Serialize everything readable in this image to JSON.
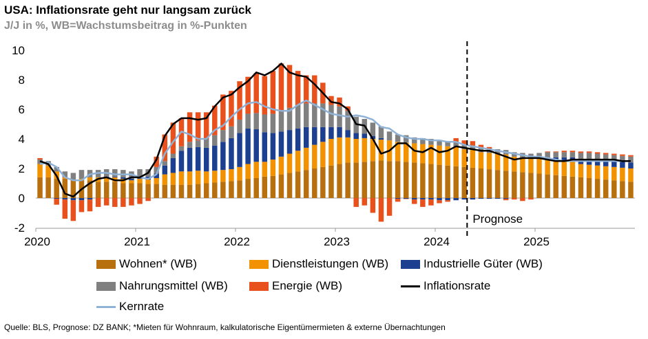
{
  "title": "USA: Inflationsrate geht nur langsam zurück",
  "subtitle": "J/J in %, WB=Wachstumsbeitrag in %-Punkten",
  "source": "Quelle: BLS, Prognose: DZ BANK; *Mieten für Wohnraum, kalkulatorische Eigentümermieten & externe Übernachtungen",
  "prognose_label": "Prognose",
  "legend": {
    "wohnen": "Wohnen* (WB)",
    "dienst": "Dienstleistungen (WB)",
    "guter": "Industrielle Güter (WB)",
    "nahrung": "Nahrungsmittel (WB)",
    "energie": "Energie (WB)",
    "inflation": "Inflationsrate",
    "kern": "Kernrate"
  },
  "colors": {
    "wohnen": "#b8700f",
    "dienst": "#f39200",
    "guter": "#1d3f8f",
    "nahrung": "#808080",
    "energie": "#e8501c",
    "inflation": "#000000",
    "kern": "#8fb2d6"
  },
  "chart_data": {
    "type": "bar",
    "x_start": "2020-01",
    "x_end": "2025-12",
    "x_tick_labels": [
      "2020",
      "2021",
      "2022",
      "2023",
      "2024",
      "2025"
    ],
    "y_ticks": [
      "-2",
      "0",
      "2",
      "4",
      "6",
      "8",
      "10"
    ],
    "ylim": [
      -2,
      10
    ],
    "prognose_start": "2024-05",
    "series": [
      {
        "name": "Wohnen* (WB)",
        "values": [
          1.4,
          1.4,
          1.3,
          1.3,
          1.2,
          1.2,
          1.2,
          1.1,
          1.1,
          1.1,
          1.0,
          1.0,
          1.0,
          0.95,
          0.95,
          0.9,
          0.9,
          0.9,
          0.9,
          0.95,
          1.0,
          1.05,
          1.1,
          1.15,
          1.2,
          1.3,
          1.35,
          1.45,
          1.5,
          1.6,
          1.7,
          1.8,
          1.9,
          2.0,
          2.1,
          2.2,
          2.3,
          2.4,
          2.4,
          2.45,
          2.5,
          2.55,
          2.5,
          2.5,
          2.45,
          2.4,
          2.35,
          2.3,
          2.25,
          2.2,
          2.15,
          2.1,
          2.05,
          2.0,
          1.95,
          1.9,
          1.85,
          1.8,
          1.75,
          1.7,
          1.65,
          1.6,
          1.55,
          1.5,
          1.45,
          1.4,
          1.35,
          1.3,
          1.25,
          1.2,
          1.15,
          1.1
        ]
      },
      {
        "name": "Dienstleistungen (WB)",
        "values": [
          0.9,
          0.8,
          0.5,
          0.1,
          0.0,
          0.1,
          0.2,
          0.3,
          0.3,
          0.3,
          0.3,
          0.2,
          0.3,
          0.3,
          0.4,
          0.7,
          0.8,
          0.9,
          0.9,
          0.9,
          0.8,
          0.8,
          0.8,
          0.8,
          0.9,
          1.0,
          1.1,
          1.0,
          1.1,
          1.2,
          1.3,
          1.4,
          1.5,
          1.6,
          1.7,
          1.8,
          1.8,
          1.7,
          1.6,
          1.6,
          1.5,
          1.4,
          1.4,
          1.3,
          1.3,
          1.3,
          1.3,
          1.3,
          1.3,
          1.3,
          1.3,
          1.2,
          1.2,
          1.1,
          1.1,
          1.1,
          1.1,
          1.0,
          1.0,
          1.0,
          1.0,
          1.0,
          1.0,
          1.0,
          1.0,
          0.9,
          0.9,
          0.9,
          0.9,
          0.9,
          0.9,
          0.9
        ]
      },
      {
        "name": "Industrielle Güter (WB)",
        "values": [
          0.0,
          0.0,
          -0.05,
          -0.1,
          -0.15,
          -0.15,
          -0.1,
          0.0,
          0.05,
          0.05,
          0.1,
          0.1,
          0.15,
          0.2,
          0.3,
          0.6,
          1.0,
          1.4,
          1.6,
          1.6,
          1.6,
          1.7,
          1.9,
          2.1,
          2.3,
          2.4,
          2.2,
          2.0,
          1.8,
          1.7,
          1.6,
          1.5,
          1.4,
          1.2,
          1.0,
          0.8,
          0.7,
          0.5,
          0.4,
          0.3,
          0.2,
          0.1,
          0.0,
          -0.05,
          -0.05,
          -0.1,
          -0.1,
          -0.1,
          -0.15,
          -0.15,
          -0.15,
          -0.1,
          -0.1,
          -0.05,
          -0.05,
          -0.05,
          -0.05,
          0.0,
          0.0,
          0.0,
          0.1,
          0.15,
          0.2,
          0.25,
          0.3,
          0.35,
          0.4,
          0.4,
          0.4,
          0.4,
          0.4,
          0.4
        ]
      },
      {
        "name": "Nahrungsmittel (WB)",
        "values": [
          0.3,
          0.3,
          0.3,
          0.4,
          0.5,
          0.6,
          0.5,
          0.5,
          0.5,
          0.5,
          0.5,
          0.5,
          0.5,
          0.5,
          0.45,
          0.3,
          0.3,
          0.3,
          0.4,
          0.45,
          0.6,
          0.7,
          0.8,
          0.8,
          0.9,
          1.0,
          1.1,
          1.2,
          1.3,
          1.4,
          1.5,
          1.6,
          1.6,
          1.6,
          1.6,
          1.5,
          1.4,
          1.3,
          1.1,
          1.0,
          0.9,
          0.8,
          0.6,
          0.5,
          0.5,
          0.4,
          0.4,
          0.4,
          0.3,
          0.3,
          0.3,
          0.3,
          0.3,
          0.3,
          0.3,
          0.3,
          0.3,
          0.3,
          0.3,
          0.3,
          0.3,
          0.35,
          0.35,
          0.35,
          0.35,
          0.4,
          0.4,
          0.4,
          0.4,
          0.4,
          0.4,
          0.4
        ]
      },
      {
        "name": "Energie (WB)",
        "values": [
          0.1,
          0.0,
          -0.4,
          -1.3,
          -1.4,
          -0.8,
          -0.8,
          -0.6,
          -0.5,
          -0.6,
          -0.6,
          -0.5,
          -0.4,
          -0.2,
          0.7,
          1.8,
          2.1,
          1.9,
          2.0,
          1.9,
          1.8,
          2.0,
          2.4,
          2.4,
          2.6,
          2.5,
          2.7,
          2.6,
          2.9,
          3.2,
          2.9,
          2.3,
          1.9,
          1.9,
          1.4,
          0.6,
          0.6,
          0.3,
          -0.6,
          -0.5,
          -1.0,
          -1.6,
          -1.2,
          -0.2,
          -0.02,
          -0.3,
          -0.5,
          -0.4,
          -0.2,
          -0.1,
          0.3,
          0.3,
          0.3,
          0.2,
          0.1,
          0.0,
          -0.1,
          -0.1,
          -0.2,
          -0.1,
          0.0,
          0.05,
          0.05,
          0.1,
          0.1,
          0.1,
          0.1,
          0.1,
          0.1,
          0.1,
          0.1,
          0.1
        ]
      },
      {
        "name": "Inflationsrate",
        "values": [
          2.5,
          2.3,
          1.5,
          0.3,
          0.1,
          0.6,
          1.0,
          1.3,
          1.4,
          1.2,
          1.2,
          1.4,
          1.4,
          1.7,
          2.6,
          4.2,
          5.0,
          5.4,
          5.4,
          5.3,
          5.4,
          6.2,
          6.8,
          7.0,
          7.5,
          7.9,
          8.5,
          8.3,
          8.6,
          9.1,
          8.5,
          8.3,
          8.2,
          7.7,
          7.1,
          6.5,
          6.4,
          6.0,
          5.0,
          4.9,
          4.0,
          3.0,
          3.2,
          3.7,
          3.7,
          3.2,
          3.1,
          3.4,
          3.1,
          3.2,
          3.5,
          3.4,
          3.3,
          3.2,
          3.2,
          3.0,
          2.8,
          2.6,
          2.7,
          2.7,
          2.7,
          2.6,
          2.5,
          2.5,
          2.6,
          2.6,
          2.6,
          2.6,
          2.6,
          2.6,
          2.5,
          2.5
        ]
      },
      {
        "name": "Kernrate",
        "values": [
          2.3,
          2.4,
          2.1,
          1.4,
          1.2,
          1.2,
          1.6,
          1.7,
          1.7,
          1.6,
          1.6,
          1.6,
          1.4,
          1.3,
          1.6,
          3.0,
          3.8,
          4.5,
          4.3,
          4.0,
          4.0,
          4.6,
          4.9,
          5.5,
          6.0,
          6.4,
          6.5,
          6.2,
          6.0,
          5.9,
          5.9,
          6.3,
          6.6,
          6.3,
          6.0,
          5.7,
          5.6,
          5.5,
          5.6,
          5.5,
          5.3,
          4.8,
          4.7,
          4.3,
          4.1,
          4.0,
          4.0,
          3.9,
          3.9,
          3.8,
          3.8,
          3.6,
          3.5,
          3.4,
          3.3,
          3.2,
          3.1,
          3.0,
          2.9,
          2.8,
          2.8,
          2.7,
          2.6,
          2.5,
          2.5,
          2.5,
          2.5,
          2.5,
          2.5,
          2.5,
          2.5,
          2.5
        ]
      }
    ]
  }
}
